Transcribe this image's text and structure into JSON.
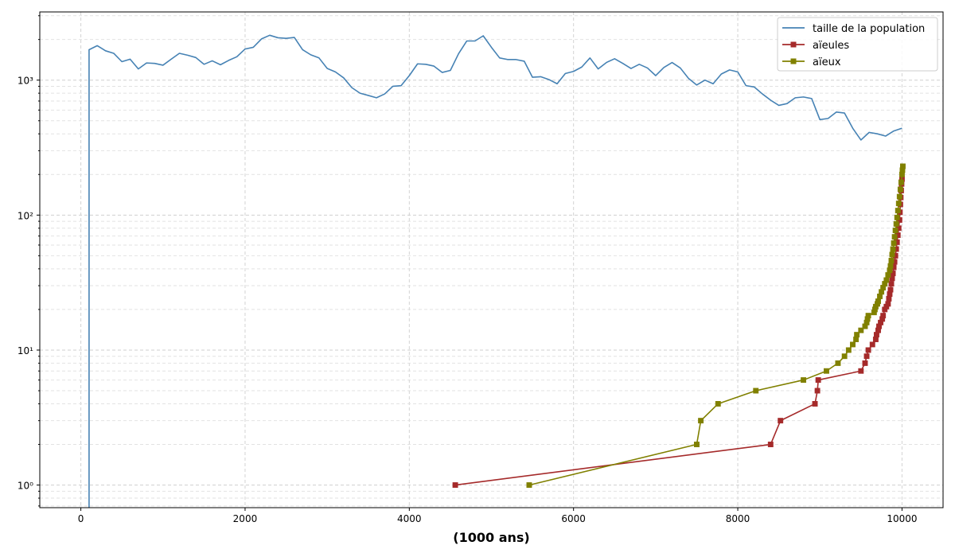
{
  "chart_data": {
    "type": "line",
    "title": "",
    "xlabel": "(1000 ans)",
    "ylabel": "",
    "xlim": [
      -500,
      10500
    ],
    "ylim": [
      0.68,
      3200
    ],
    "yscale": "log",
    "grid": true,
    "legend": "top-right",
    "x_ticks": [
      0,
      2000,
      4000,
      6000,
      8000,
      10000
    ],
    "x_tick_labels": [
      "0",
      "2000",
      "4000",
      "6000",
      "8000",
      "10000"
    ],
    "y_ticks": [
      1,
      10,
      100,
      1000
    ],
    "y_tick_labels": [
      "10⁰",
      "10¹",
      "10²",
      "10³"
    ],
    "series": [
      {
        "name": "taille de la population",
        "color": "#4682b4",
        "marker": "none",
        "points": [
          [
            100,
            0.55
          ],
          [
            100,
            1680
          ],
          [
            200,
            1800
          ],
          [
            300,
            1650
          ],
          [
            400,
            1580
          ],
          [
            500,
            1370
          ],
          [
            600,
            1430
          ],
          [
            700,
            1210
          ],
          [
            800,
            1340
          ],
          [
            900,
            1330
          ],
          [
            1000,
            1290
          ],
          [
            1100,
            1430
          ],
          [
            1200,
            1580
          ],
          [
            1300,
            1530
          ],
          [
            1400,
            1470
          ],
          [
            1500,
            1310
          ],
          [
            1600,
            1390
          ],
          [
            1700,
            1300
          ],
          [
            1800,
            1400
          ],
          [
            1900,
            1490
          ],
          [
            2000,
            1700
          ],
          [
            2100,
            1750
          ],
          [
            2200,
            2020
          ],
          [
            2300,
            2150
          ],
          [
            2400,
            2060
          ],
          [
            2500,
            2040
          ],
          [
            2600,
            2070
          ],
          [
            2700,
            1680
          ],
          [
            2800,
            1540
          ],
          [
            2900,
            1460
          ],
          [
            3000,
            1220
          ],
          [
            3100,
            1150
          ],
          [
            3200,
            1040
          ],
          [
            3300,
            880
          ],
          [
            3400,
            800
          ],
          [
            3500,
            770
          ],
          [
            3600,
            740
          ],
          [
            3700,
            790
          ],
          [
            3800,
            900
          ],
          [
            3900,
            910
          ],
          [
            4000,
            1080
          ],
          [
            4100,
            1320
          ],
          [
            4200,
            1310
          ],
          [
            4300,
            1270
          ],
          [
            4400,
            1140
          ],
          [
            4500,
            1180
          ],
          [
            4600,
            1570
          ],
          [
            4700,
            1950
          ],
          [
            4800,
            1950
          ],
          [
            4900,
            2130
          ],
          [
            5000,
            1750
          ],
          [
            5100,
            1460
          ],
          [
            5200,
            1420
          ],
          [
            5300,
            1420
          ],
          [
            5400,
            1380
          ],
          [
            5500,
            1050
          ],
          [
            5600,
            1060
          ],
          [
            5700,
            1010
          ],
          [
            5800,
            940
          ],
          [
            5900,
            1120
          ],
          [
            6000,
            1160
          ],
          [
            6100,
            1250
          ],
          [
            6200,
            1460
          ],
          [
            6300,
            1210
          ],
          [
            6400,
            1350
          ],
          [
            6500,
            1440
          ],
          [
            6600,
            1330
          ],
          [
            6700,
            1220
          ],
          [
            6800,
            1310
          ],
          [
            6900,
            1230
          ],
          [
            7000,
            1080
          ],
          [
            7100,
            1240
          ],
          [
            7200,
            1350
          ],
          [
            7300,
            1230
          ],
          [
            7400,
            1030
          ],
          [
            7500,
            920
          ],
          [
            7600,
            1000
          ],
          [
            7700,
            940
          ],
          [
            7800,
            1110
          ],
          [
            7900,
            1190
          ],
          [
            8000,
            1150
          ],
          [
            8100,
            910
          ],
          [
            8200,
            890
          ],
          [
            8300,
            790
          ],
          [
            8400,
            710
          ],
          [
            8500,
            650
          ],
          [
            8600,
            670
          ],
          [
            8700,
            740
          ],
          [
            8800,
            750
          ],
          [
            8900,
            730
          ],
          [
            9000,
            510
          ],
          [
            9100,
            520
          ],
          [
            9200,
            580
          ],
          [
            9300,
            570
          ],
          [
            9400,
            440
          ],
          [
            9500,
            360
          ],
          [
            9600,
            410
          ],
          [
            9700,
            400
          ],
          [
            9800,
            385
          ],
          [
            9900,
            420
          ],
          [
            10000,
            440
          ]
        ]
      },
      {
        "name": "aïeules",
        "color": "#a52a2a",
        "marker": "square",
        "points": [
          [
            4560,
            1
          ],
          [
            8400,
            2
          ],
          [
            8520,
            3
          ],
          [
            8940,
            4
          ],
          [
            8970,
            5
          ],
          [
            8980,
            6
          ],
          [
            9500,
            7
          ],
          [
            9550,
            8
          ],
          [
            9570,
            9
          ],
          [
            9590,
            10
          ],
          [
            9640,
            11
          ],
          [
            9680,
            12
          ],
          [
            9690,
            13
          ],
          [
            9710,
            14
          ],
          [
            9720,
            15
          ],
          [
            9740,
            16
          ],
          [
            9760,
            17
          ],
          [
            9770,
            18
          ],
          [
            9790,
            20
          ],
          [
            9810,
            21
          ],
          [
            9830,
            22
          ],
          [
            9840,
            24
          ],
          [
            9850,
            26
          ],
          [
            9860,
            28
          ],
          [
            9870,
            31
          ],
          [
            9880,
            34
          ],
          [
            9890,
            37
          ],
          [
            9900,
            41
          ],
          [
            9910,
            45
          ],
          [
            9920,
            50
          ],
          [
            9930,
            56
          ],
          [
            9940,
            63
          ],
          [
            9950,
            71
          ],
          [
            9960,
            80
          ],
          [
            9970,
            92
          ],
          [
            9975,
            105
          ],
          [
            9980,
            120
          ],
          [
            9985,
            135
          ],
          [
            9990,
            152
          ],
          [
            9995,
            170
          ],
          [
            10000,
            185
          ]
        ]
      },
      {
        "name": "aïeux",
        "color": "#808000",
        "marker": "square",
        "points": [
          [
            5460,
            1
          ],
          [
            7500,
            2
          ],
          [
            7550,
            3
          ],
          [
            7760,
            4
          ],
          [
            8220,
            5
          ],
          [
            8800,
            6
          ],
          [
            9080,
            7
          ],
          [
            9220,
            8
          ],
          [
            9300,
            9
          ],
          [
            9350,
            10
          ],
          [
            9400,
            11
          ],
          [
            9440,
            12
          ],
          [
            9450,
            13
          ],
          [
            9500,
            14
          ],
          [
            9550,
            15
          ],
          [
            9570,
            16
          ],
          [
            9580,
            17
          ],
          [
            9590,
            18
          ],
          [
            9660,
            19
          ],
          [
            9670,
            20
          ],
          [
            9680,
            21
          ],
          [
            9700,
            22
          ],
          [
            9710,
            23
          ],
          [
            9730,
            25
          ],
          [
            9750,
            27
          ],
          [
            9770,
            29
          ],
          [
            9790,
            31
          ],
          [
            9810,
            33
          ],
          [
            9830,
            36
          ],
          [
            9850,
            39
          ],
          [
            9860,
            42
          ],
          [
            9870,
            46
          ],
          [
            9880,
            51
          ],
          [
            9890,
            56
          ],
          [
            9900,
            62
          ],
          [
            9910,
            69
          ],
          [
            9920,
            77
          ],
          [
            9930,
            86
          ],
          [
            9940,
            96
          ],
          [
            9950,
            108
          ],
          [
            9960,
            122
          ],
          [
            9970,
            137
          ],
          [
            9980,
            155
          ],
          [
            9990,
            175
          ],
          [
            10000,
            200
          ],
          [
            10005,
            215
          ],
          [
            10010,
            230
          ]
        ]
      }
    ]
  }
}
